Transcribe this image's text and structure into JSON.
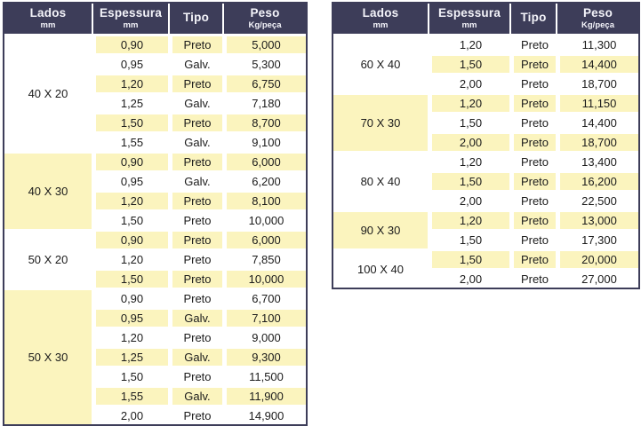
{
  "colors": {
    "header_bg": "#3D3D59",
    "header_text": "#F4F4FA",
    "border": "#3D3D59",
    "row_highlight": "#FBF4BE",
    "row_plain": "#FFFFFF",
    "body_text": "#1B1B1B"
  },
  "tables": [
    {
      "id": "left",
      "headers": [
        {
          "key": "lados",
          "label": "Lados",
          "sub": "mm"
        },
        {
          "key": "espessura",
          "label": "Espessura",
          "sub": "mm"
        },
        {
          "key": "tipo",
          "label": "Tipo",
          "sub": ""
        },
        {
          "key": "peso",
          "label": "Peso",
          "sub": "Kg/peça"
        }
      ],
      "groups": [
        {
          "lados": "40 X 20",
          "highlight": false,
          "rows": [
            {
              "espessura": "0,90",
              "tipo": "Preto",
              "peso": "5,000",
              "highlight": true
            },
            {
              "espessura": "0,95",
              "tipo": "Galv.",
              "peso": "5,300",
              "highlight": false
            },
            {
              "espessura": "1,20",
              "tipo": "Preto",
              "peso": "6,750",
              "highlight": true
            },
            {
              "espessura": "1,25",
              "tipo": "Galv.",
              "peso": "7,180",
              "highlight": false
            },
            {
              "espessura": "1,50",
              "tipo": "Preto",
              "peso": "8,700",
              "highlight": true
            },
            {
              "espessura": "1,55",
              "tipo": "Galv.",
              "peso": "9,100",
              "highlight": false
            }
          ]
        },
        {
          "lados": "40 X 30",
          "highlight": true,
          "rows": [
            {
              "espessura": "0,90",
              "tipo": "Preto",
              "peso": "6,000",
              "highlight": true
            },
            {
              "espessura": "0,95",
              "tipo": "Galv.",
              "peso": "6,200",
              "highlight": false
            },
            {
              "espessura": "1,20",
              "tipo": "Preto",
              "peso": "8,100",
              "highlight": true
            },
            {
              "espessura": "1,50",
              "tipo": "Preto",
              "peso": "10,000",
              "highlight": false
            }
          ]
        },
        {
          "lados": "50 X 20",
          "highlight": false,
          "rows": [
            {
              "espessura": "0,90",
              "tipo": "Preto",
              "peso": "6,000",
              "highlight": true
            },
            {
              "espessura": "1,20",
              "tipo": "Preto",
              "peso": "7,850",
              "highlight": false
            },
            {
              "espessura": "1,50",
              "tipo": "Preto",
              "peso": "10,000",
              "highlight": true
            }
          ]
        },
        {
          "lados": "50 X 30",
          "highlight": true,
          "rows": [
            {
              "espessura": "0,90",
              "tipo": "Preto",
              "peso": "6,700",
              "highlight": false
            },
            {
              "espessura": "0,95",
              "tipo": "Galv.",
              "peso": "7,100",
              "highlight": true
            },
            {
              "espessura": "1,20",
              "tipo": "Preto",
              "peso": "9,000",
              "highlight": false
            },
            {
              "espessura": "1,25",
              "tipo": "Galv.",
              "peso": "9,300",
              "highlight": true
            },
            {
              "espessura": "1,50",
              "tipo": "Preto",
              "peso": "11,500",
              "highlight": false
            },
            {
              "espessura": "1,55",
              "tipo": "Galv.",
              "peso": "11,900",
              "highlight": true
            },
            {
              "espessura": "2,00",
              "tipo": "Preto",
              "peso": "14,900",
              "highlight": false
            }
          ]
        }
      ]
    },
    {
      "id": "right",
      "headers": [
        {
          "key": "lados",
          "label": "Lados",
          "sub": "mm"
        },
        {
          "key": "espessura",
          "label": "Espessura",
          "sub": "mm"
        },
        {
          "key": "tipo",
          "label": "Tipo",
          "sub": ""
        },
        {
          "key": "peso",
          "label": "Peso",
          "sub": "Kg/peça"
        }
      ],
      "groups": [
        {
          "lados": "60 X 40",
          "highlight": false,
          "rows": [
            {
              "espessura": "1,20",
              "tipo": "Preto",
              "peso": "11,300",
              "highlight": false
            },
            {
              "espessura": "1,50",
              "tipo": "Preto",
              "peso": "14,400",
              "highlight": true
            },
            {
              "espessura": "2,00",
              "tipo": "Preto",
              "peso": "18,700",
              "highlight": false
            }
          ]
        },
        {
          "lados": "70 X 30",
          "highlight": true,
          "rows": [
            {
              "espessura": "1,20",
              "tipo": "Preto",
              "peso": "11,150",
              "highlight": true
            },
            {
              "espessura": "1,50",
              "tipo": "Preto",
              "peso": "14,400",
              "highlight": false
            },
            {
              "espessura": "2,00",
              "tipo": "Preto",
              "peso": "18,700",
              "highlight": true
            }
          ]
        },
        {
          "lados": "80 X 40",
          "highlight": false,
          "rows": [
            {
              "espessura": "1,20",
              "tipo": "Preto",
              "peso": "13,400",
              "highlight": false
            },
            {
              "espessura": "1,50",
              "tipo": "Preto",
              "peso": "16,200",
              "highlight": true
            },
            {
              "espessura": "2,00",
              "tipo": "Preto",
              "peso": "22,500",
              "highlight": false
            }
          ]
        },
        {
          "lados": "90 X 30",
          "highlight": true,
          "rows": [
            {
              "espessura": "1,20",
              "tipo": "Preto",
              "peso": "13,000",
              "highlight": true
            },
            {
              "espessura": "1,50",
              "tipo": "Preto",
              "peso": "17,300",
              "highlight": false
            }
          ]
        },
        {
          "lados": "100 X 40",
          "highlight": false,
          "rows": [
            {
              "espessura": "1,50",
              "tipo": "Preto",
              "peso": "20,000",
              "highlight": true
            },
            {
              "espessura": "2,00",
              "tipo": "Preto",
              "peso": "27,000",
              "highlight": false
            }
          ]
        }
      ]
    }
  ]
}
